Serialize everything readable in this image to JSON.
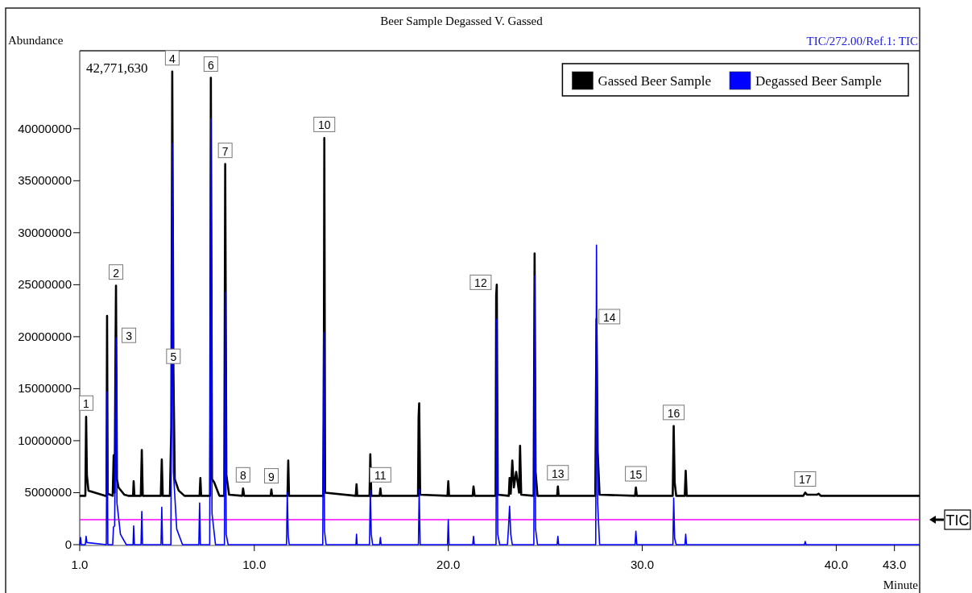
{
  "chart_data": {
    "type": "line",
    "title": "Beer Sample Degassed V. Gassed",
    "xlabel": "Minute",
    "ylabel": "Abundance",
    "xlim": [
      1.0,
      44.3
    ],
    "xticks": [
      {
        "value": 1,
        "label": "1.0"
      },
      {
        "value": 10,
        "label": "10.0"
      },
      {
        "value": 20,
        "label": "20.0"
      },
      {
        "value": 30,
        "label": "30.0"
      },
      {
        "value": 40,
        "label": "40.0"
      },
      {
        "value": 43,
        "label": "43.0"
      }
    ],
    "ylim": [
      0,
      47500000
    ],
    "yticks": [
      0,
      5000000,
      10000000,
      15000000,
      20000000,
      25000000,
      30000000,
      35000000,
      40000000
    ],
    "grid": false,
    "legend": "top right",
    "marker": "none",
    "line_style": "solid",
    "ref_lines": [
      {
        "axis": "y",
        "value": 2400000,
        "label": "TIC",
        "color": "#ff00ff"
      }
    ],
    "annotations": [
      "42,771,630",
      "TIC/272.00/Ref.1: TIC",
      {
        "text": "1",
        "x": 1.33,
        "y": 12300000
      },
      {
        "text": "2",
        "x": 2.87,
        "y": 24900000
      },
      {
        "text": "3",
        "x": 2.87,
        "y": 19900000
      },
      {
        "text": "4",
        "x": 5.77,
        "y": 45500000
      },
      {
        "text": "5",
        "x": 5.83,
        "y": 16800000
      },
      {
        "text": "6",
        "x": 7.76,
        "y": 44900000
      },
      {
        "text": "7",
        "x": 8.5,
        "y": 36600000
      },
      {
        "text": "8",
        "x": 9.42,
        "y": 5400000
      },
      {
        "text": "9",
        "x": 10.88,
        "y": 5300000
      },
      {
        "text": "10",
        "x": 13.61,
        "y": 39100000
      },
      {
        "text": "11",
        "x": 16.5,
        "y": 5400000
      },
      {
        "text": "12",
        "x": 22.5,
        "y": 25000000
      },
      {
        "text": "13",
        "x": 25.65,
        "y": 5600000
      },
      {
        "text": "14",
        "x": 27.64,
        "y": 21700000
      },
      {
        "text": "15",
        "x": 29.67,
        "y": 5500000
      },
      {
        "text": "16",
        "x": 31.62,
        "y": 11400000
      },
      {
        "text": "17",
        "x": 38.4,
        "y": 5000000
      }
    ],
    "series": [
      {
        "name": "Gassed Beer Sample",
        "color": "#000000",
        "x": [
          1.0,
          1.29,
          1.33,
          1.37,
          1.45,
          2.3,
          2.38,
          2.41,
          2.44,
          2.7,
          2.75,
          2.8,
          2.85,
          2.87,
          2.92,
          3.0,
          3.3,
          3.5,
          3.75,
          3.78,
          3.82,
          4.15,
          4.2,
          4.25,
          5.18,
          5.23,
          5.28,
          5.65,
          5.72,
          5.77,
          5.83,
          5.9,
          6.1,
          6.4,
          7.18,
          7.22,
          7.26,
          7.72,
          7.76,
          7.82,
          7.93,
          8.2,
          8.45,
          8.5,
          8.56,
          8.7,
          9.38,
          9.42,
          9.48,
          10.84,
          10.88,
          10.92,
          11.71,
          11.75,
          11.79,
          13.55,
          13.58,
          13.61,
          13.65,
          15.23,
          15.27,
          15.31,
          15.94,
          15.98,
          16.03,
          16.46,
          16.5,
          16.54,
          18.44,
          18.47,
          18.5,
          18.55,
          19.96,
          20.0,
          20.04,
          21.26,
          21.3,
          21.36,
          22.44,
          22.47,
          22.5,
          22.55,
          23.12,
          23.16,
          23.22,
          23.3,
          23.38,
          23.5,
          23.65,
          23.7,
          23.76,
          24.4,
          24.45,
          24.5,
          24.6,
          25.61,
          25.65,
          25.69,
          27.58,
          27.64,
          27.7,
          27.8,
          29.63,
          29.67,
          29.72,
          31.57,
          31.62,
          31.67,
          31.75,
          32.19,
          32.24,
          32.29,
          38.3,
          38.4,
          38.5,
          39.0,
          39.1,
          39.2,
          39.8,
          44.3
        ],
        "values": [
          4700000,
          4700000,
          12300000,
          6700000,
          5200000,
          4700000,
          4700000,
          22000000,
          4900000,
          4700000,
          8600000,
          5000000,
          20000000,
          24900000,
          6300000,
          5500000,
          4800000,
          4700000,
          4700000,
          6100000,
          4700000,
          4700000,
          9100000,
          4700000,
          4700000,
          8200000,
          4700000,
          4700000,
          11300000,
          45500000,
          16800000,
          6300000,
          5200000,
          4700000,
          4700000,
          6400000,
          4700000,
          4700000,
          44900000,
          6300000,
          6000000,
          4700000,
          4700000,
          36600000,
          6700000,
          4800000,
          4700000,
          5400000,
          4700000,
          4700000,
          5300000,
          4700000,
          4700000,
          8100000,
          4700000,
          4700000,
          11800000,
          39100000,
          5000000,
          4700000,
          5800000,
          4700000,
          4700000,
          8700000,
          4700000,
          4700000,
          5400000,
          4700000,
          4700000,
          12300000,
          13600000,
          4800000,
          4700000,
          6100000,
          4700000,
          4700000,
          5600000,
          4700000,
          4700000,
          24000000,
          25000000,
          4800000,
          4700000,
          6400000,
          4900000,
          8100000,
          5500000,
          7000000,
          5000000,
          9500000,
          4800000,
          4700000,
          28000000,
          7000000,
          4700000,
          4700000,
          5600000,
          4700000,
          4700000,
          21700000,
          9000000,
          4800000,
          4700000,
          5500000,
          4700000,
          4700000,
          11400000,
          6000000,
          4700000,
          4700000,
          7100000,
          4700000,
          4700000,
          5000000,
          4800000,
          4800000,
          4900000,
          4700000,
          4700000,
          4700000
        ]
      },
      {
        "name": "Degassed Beer Sample",
        "color": "#0000ff",
        "x": [
          1.0,
          1.04,
          1.08,
          1.29,
          1.33,
          1.37,
          2.37,
          2.41,
          2.45,
          2.7,
          2.74,
          2.8,
          2.87,
          2.92,
          3.1,
          3.4,
          3.75,
          3.78,
          3.82,
          4.16,
          4.2,
          4.24,
          5.19,
          5.23,
          5.27,
          5.7,
          5.77,
          5.83,
          6.0,
          6.3,
          7.14,
          7.18,
          7.22,
          7.7,
          7.76,
          7.82,
          8.0,
          8.46,
          8.5,
          8.55,
          8.65,
          11.66,
          11.7,
          11.75,
          11.8,
          13.53,
          13.57,
          13.62,
          13.7,
          15.24,
          15.27,
          15.3,
          15.94,
          15.98,
          16.03,
          16.1,
          16.46,
          16.5,
          16.54,
          18.46,
          18.5,
          18.55,
          19.96,
          20.0,
          20.04,
          21.26,
          21.3,
          21.34,
          22.46,
          22.5,
          22.55,
          22.65,
          23.05,
          23.1,
          23.16,
          23.22,
          23.3,
          24.41,
          24.45,
          24.5,
          24.6,
          25.61,
          25.65,
          25.69,
          27.6,
          27.64,
          27.7,
          27.8,
          29.63,
          29.67,
          29.72,
          31.58,
          31.62,
          31.67,
          31.75,
          32.2,
          32.24,
          32.28,
          38.36,
          38.4,
          38.44,
          44.3
        ],
        "values": [
          0,
          700000,
          0,
          0,
          800000,
          200000,
          0,
          14700000,
          0,
          0,
          1700000,
          1800000,
          19900000,
          4000000,
          1000000,
          0,
          0,
          1800000,
          0,
          0,
          3200000,
          0,
          0,
          3600000,
          0,
          0,
          38600000,
          7000000,
          1500000,
          0,
          0,
          4000000,
          0,
          0,
          41000000,
          3000000,
          0,
          0,
          24300000,
          1000000,
          0,
          0,
          5000000,
          800000,
          0,
          0,
          20400000,
          1300000,
          0,
          0,
          1000000,
          0,
          0,
          5200000,
          1000000,
          0,
          0,
          700000,
          0,
          0,
          5300000,
          0,
          0,
          2400000,
          0,
          0,
          800000,
          0,
          0,
          21700000,
          1000000,
          0,
          0,
          1500000,
          3700000,
          1000000,
          0,
          0,
          25900000,
          1500000,
          0,
          0,
          800000,
          0,
          0,
          28800000,
          4000000,
          0,
          0,
          1300000,
          0,
          0,
          4500000,
          600000,
          0,
          0,
          1000000,
          0,
          0,
          300000,
          0,
          0
        ]
      }
    ]
  }
}
